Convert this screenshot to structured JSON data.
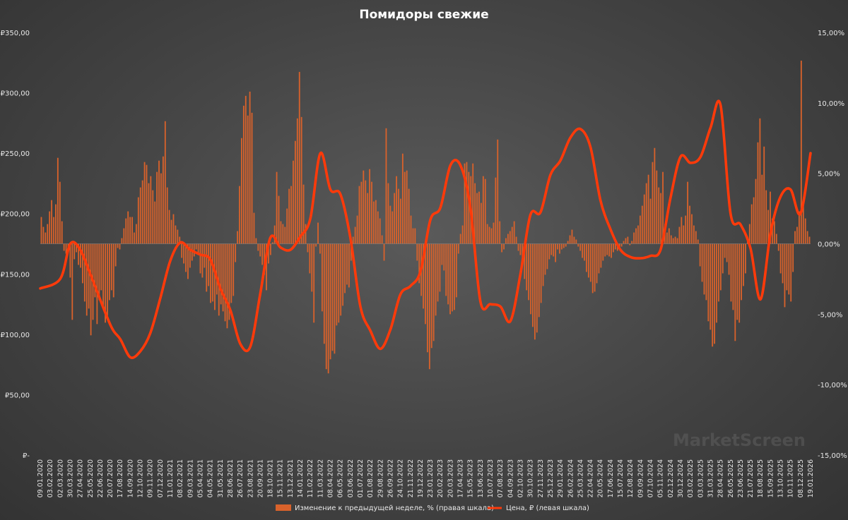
{
  "chart_data": {
    "type": "bar+line",
    "title": "Помидоры свежие",
    "watermark": "MarketScreen",
    "left_axis": {
      "ticks": [
        0,
        50,
        100,
        150,
        200,
        250,
        300,
        350
      ],
      "tick_labels": [
        "₽-",
        "₽50,00",
        "₽100,00",
        "₽150,00",
        "₽200,00",
        "₽250,00",
        "₽300,00",
        "₽350,00"
      ],
      "ylim": [
        0,
        350
      ]
    },
    "right_axis": {
      "ticks": [
        -15,
        -10,
        -5,
        0,
        5,
        10,
        15
      ],
      "tick_labels": [
        "-15,00%",
        "-10,00%",
        "-5,00%",
        "0,00%",
        "5,00%",
        "10,00%",
        "15,00%"
      ],
      "ylim": [
        -15,
        15
      ]
    },
    "x_tick_labels": [
      "09.01.2020",
      "03.02.2020",
      "02.03.2020",
      "30.03.2020",
      "27.04.2020",
      "25.05.2020",
      "22.06.2020",
      "20.07.2020",
      "17.08.2020",
      "14.09.2020",
      "12.10.2020",
      "09.11.2020",
      "07.12.2020",
      "11.01.2021",
      "08.02.2021",
      "09.03.2021",
      "05.04.2021",
      "04.05.2021",
      "31.05.2021",
      "28.06.2021",
      "26.07.2021",
      "23.08.2021",
      "20.09.2021",
      "18.10.2021",
      "15.11.2021",
      "13.12.2021",
      "14.01.2022",
      "11.02.2022",
      "11.03.2022",
      "08.04.2022",
      "06.05.2022",
      "03.06.2022",
      "01.07.2022",
      "01.08.2022",
      "29.08.2022",
      "26.09.2022",
      "24.10.2022",
      "21.11.2022",
      "19.12.2022",
      "23.01.2023",
      "20.02.2023",
      "20.03.2023",
      "17.04.2023",
      "15.05.2023",
      "13.06.2023",
      "10.07.2023",
      "07.08.2023",
      "04.09.2023",
      "02.10.2023",
      "30.10.2023",
      "27.11.2023",
      "25.12.2023",
      "29.01.2024",
      "26.02.2024",
      "25.03.2024",
      "22.04.2024",
      "20.05.2024",
      "17.06.2024",
      "15.07.2024",
      "12.08.2024",
      "09.09.2024",
      "07.10.2024",
      "05.11.2024",
      "02.12.2024",
      "30.12.2024",
      "03.02.2025",
      "03.03.2025",
      "31.03.2025",
      "28.04.2025",
      "26.05.2025",
      "23.06.2025",
      "21.07.2025",
      "18.08.2025",
      "15.09.2025",
      "13.10.2025",
      "10.11.2025",
      "08.12.2025",
      "19.01.2026"
    ],
    "series": [
      {
        "name": "Изменение к предыдущей неделе, % (правая шкала)",
        "type": "bar",
        "axis": "right",
        "color": "#d9622b",
        "values": [
          1.9,
          1.2,
          0.8,
          1.4,
          2.3,
          3.1,
          1.9,
          2.8,
          6.1,
          4.4,
          1.6,
          -0.5,
          -0.7,
          -0.6,
          -2.4,
          -5.4,
          -1.1,
          -0.6,
          -1.5,
          -1.7,
          -2.8,
          -4.1,
          -5.1,
          -4.6,
          -6.5,
          -5.4,
          -3.8,
          -5.7,
          -4.0,
          -3.3,
          -4.4,
          -5.6,
          -5.1,
          -4.0,
          -3.3,
          -3.8,
          -1.6,
          -0.3,
          -0.4,
          0.4,
          1.1,
          1.8,
          2.3,
          1.9,
          1.9,
          0.8,
          1.4,
          3.3,
          4.0,
          4.5,
          5.8,
          5.6,
          4.3,
          4.8,
          3.8,
          3.0,
          5.1,
          5.9,
          5.0,
          6.2,
          8.7,
          4.0,
          2.4,
          1.7,
          2.1,
          1.3,
          1.0,
          0.5,
          -1.0,
          -1.4,
          -2.0,
          -2.5,
          -1.7,
          -1.2,
          -0.9,
          -0.4,
          -0.8,
          -2.1,
          -2.4,
          -1.7,
          -3.4,
          -3.0,
          -4.2,
          -4.1,
          -4.7,
          -3.6,
          -5.1,
          -4.3,
          -4.8,
          -5.5,
          -6.0,
          -5.4,
          -4.2,
          -3.7,
          -1.3,
          0.9,
          4.1,
          7.5,
          9.8,
          10.5,
          9.1,
          10.8,
          9.3,
          2.2,
          0.4,
          -0.5,
          -0.9,
          -1.5,
          -2.2,
          -3.3,
          -1.4,
          -0.8,
          0.1,
          1.3,
          5.1,
          3.4,
          1.6,
          1.4,
          1.2,
          2.5,
          3.9,
          4.1,
          5.9,
          7.3,
          8.9,
          12.2,
          9.0,
          4.2,
          1.4,
          -0.6,
          -2.1,
          -3.4,
          -5.6,
          -0.2,
          1.5,
          -0.7,
          -4.8,
          -7.1,
          -8.9,
          -9.2,
          -8.2,
          -7.6,
          -7.8,
          -5.8,
          -5.6,
          -5.1,
          -4.4,
          -3.5,
          -2.9,
          -3.1,
          -1.2,
          0.5,
          1.2,
          2.0,
          4.1,
          4.4,
          5.2,
          4.5,
          3.6,
          5.3,
          4.4,
          3.0,
          3.1,
          2.3,
          1.8,
          0.6,
          -1.2,
          8.2,
          4.3,
          2.7,
          2.3,
          3.6,
          4.8,
          3.9,
          3.2,
          6.4,
          5.1,
          5.2,
          3.9,
          2.0,
          1.1,
          1.1,
          -1.2,
          -2.8,
          -3.7,
          -4.6,
          -5.7,
          -7.7,
          -8.9,
          -7.4,
          -6.9,
          -5.1,
          -4.1,
          -3.4,
          -1.5,
          -1.9,
          -3.7,
          -4.3,
          -5.0,
          -4.8,
          -4.7,
          -3.8,
          -0.7,
          0.7,
          1.3,
          5.7,
          5.8,
          5.1,
          4.8,
          5.7,
          4.3,
          3.6,
          3.7,
          2.9,
          4.8,
          4.6,
          1.4,
          1.2,
          1.1,
          1.5,
          4.7,
          7.4,
          1.6,
          -0.6,
          -0.4,
          0.4,
          0.7,
          0.9,
          1.2,
          1.6,
          0.5,
          -0.5,
          -0.8,
          -1.5,
          -2.5,
          -3.3,
          -4.0,
          -5.0,
          -5.9,
          -6.8,
          -6.3,
          -5.2,
          -4.2,
          -3.0,
          -2.2,
          -1.8,
          -1.1,
          -0.8,
          -0.9,
          -1.3,
          -0.4,
          -0.7,
          -0.4,
          -0.3,
          -0.2,
          0.2,
          0.6,
          1.0,
          0.5,
          0.3,
          -0.2,
          -0.5,
          -1.0,
          -1.2,
          -2.0,
          -2.4,
          -2.7,
          -3.5,
          -3.4,
          -2.8,
          -2.1,
          -1.7,
          -1.2,
          -0.9,
          -0.8,
          -0.9,
          -1.0,
          -0.6,
          -0.4,
          -0.5,
          -0.3,
          -0.2,
          0.2,
          0.4,
          0.5,
          -0.1,
          0.2,
          0.8,
          1.1,
          1.3,
          2.0,
          2.7,
          3.5,
          4.3,
          4.9,
          3.2,
          5.8,
          6.8,
          5.2,
          4.0,
          3.6,
          5.1,
          1.4,
          0.8,
          1.1,
          0.6,
          0.4,
          0.5,
          0.4,
          1.2,
          1.9,
          1.3,
          2.0,
          4.4,
          2.7,
          2.1,
          1.3,
          0.9,
          0.3,
          -1.6,
          -2.7,
          -3.6,
          -4.0,
          -5.5,
          -6.1,
          -7.3,
          -7.1,
          -5.6,
          -4.1,
          -3.3,
          -2.1,
          -1.0,
          -1.3,
          -2.2,
          -4.1,
          -4.7,
          -6.9,
          -5.4,
          -5.6,
          -4.0,
          -3.0,
          -2.1,
          0.5,
          1.4,
          2.8,
          3.3,
          4.6,
          7.2,
          8.9,
          4.9,
          6.9,
          3.8,
          2.4,
          3.7,
          1.8,
          1.6,
          0.7,
          -0.5,
          -2.1,
          -2.8,
          -4.5,
          -3.3,
          -3.6,
          -4.1,
          -2.0,
          0.9,
          1.2,
          2.3,
          13.0,
          2.8,
          1.8,
          0.9,
          0.5
        ]
      },
      {
        "name": "Цена, ₽ (левая шкала)",
        "type": "line",
        "axis": "left",
        "color": "#ff3a0a",
        "x": [
          "09.01.2020",
          "02.03.2020",
          "30.03.2020",
          "27.04.2020",
          "25.05.2020",
          "20.07.2020",
          "17.08.2020",
          "14.09.2020",
          "12.10.2020",
          "09.11.2020",
          "07.12.2020",
          "11.01.2021",
          "08.02.2021",
          "09.03.2021",
          "05.04.2021",
          "04.05.2021",
          "31.05.2021",
          "28.06.2021",
          "26.07.2021",
          "23.08.2021",
          "20.09.2021",
          "18.10.2021",
          "15.11.2021",
          "13.12.2021",
          "14.01.2022",
          "11.02.2022",
          "11.03.2022",
          "08.04.2022",
          "06.05.2022",
          "03.06.2022",
          "01.07.2022",
          "01.08.2022",
          "29.08.2022",
          "26.09.2022",
          "24.10.2022",
          "21.11.2022",
          "19.12.2022",
          "23.01.2023",
          "20.02.2023",
          "20.03.2023",
          "17.04.2023",
          "15.05.2023",
          "13.06.2023",
          "10.07.2023",
          "07.08.2023",
          "04.09.2023",
          "02.10.2023",
          "30.10.2023",
          "27.11.2023",
          "25.12.2023",
          "29.01.2024",
          "26.02.2024",
          "25.03.2024",
          "22.04.2024",
          "20.05.2024",
          "17.06.2024",
          "15.07.2024",
          "12.08.2024",
          "09.09.2024",
          "07.10.2024",
          "05.11.2024",
          "02.12.2024",
          "30.12.2024",
          "03.02.2025",
          "03.03.2025",
          "31.03.2025",
          "28.04.2025",
          "26.05.2025",
          "23.06.2025",
          "21.07.2025",
          "18.08.2025",
          "15.09.2025",
          "13.10.2025",
          "10.11.2025",
          "08.12.2025",
          "19.01.2026"
        ],
        "values": [
          138,
          146,
          175,
          170,
          150,
          108,
          96,
          81,
          86,
          101,
          130,
          161,
          176,
          170,
          166,
          162,
          138,
          120,
          92,
          90,
          134,
          180,
          172,
          170,
          181,
          196,
          250,
          220,
          216,
          180,
          123,
          103,
          88,
          104,
          133,
          140,
          152,
          195,
          205,
          240,
          240,
          205,
          127,
          125,
          123,
          111,
          150,
          199,
          201,
          232,
          244,
          263,
          270,
          255,
          211,
          187,
          170,
          164,
          163,
          165,
          170,
          213,
          247,
          242,
          247,
          271,
          290,
          200,
          191,
          171,
          129,
          184,
          214,
          220,
          200,
          250
        ]
      }
    ]
  }
}
